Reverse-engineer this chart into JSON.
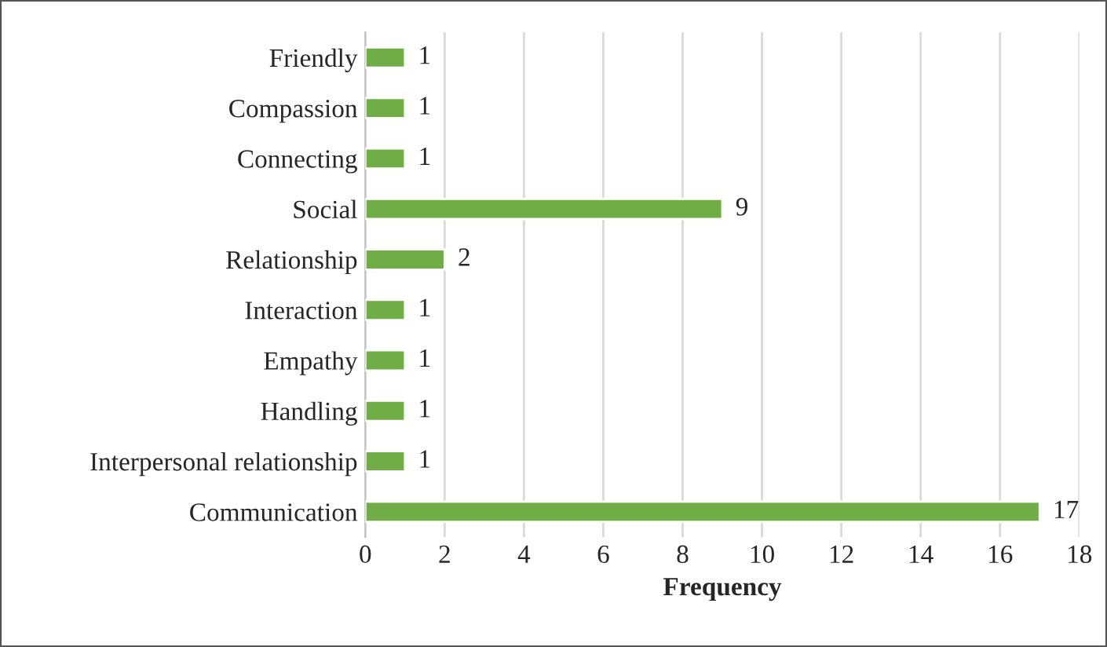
{
  "chart_data": {
    "type": "bar",
    "orientation": "horizontal",
    "xlabel": "Frequency",
    "categories": [
      "Friendly",
      "Compassion",
      "Connecting",
      "Social",
      "Relationship",
      "Interaction",
      "Empathy",
      "Handling",
      "Interpersonal relationship",
      "Communication"
    ],
    "values": [
      1,
      1,
      1,
      9,
      2,
      1,
      1,
      1,
      1,
      17
    ],
    "color": "#70ad47",
    "xlim": [
      0,
      18
    ],
    "xticks": [
      0,
      2,
      4,
      6,
      8,
      10,
      12,
      14,
      16,
      18
    ],
    "grid": "x",
    "data_labels": true
  }
}
